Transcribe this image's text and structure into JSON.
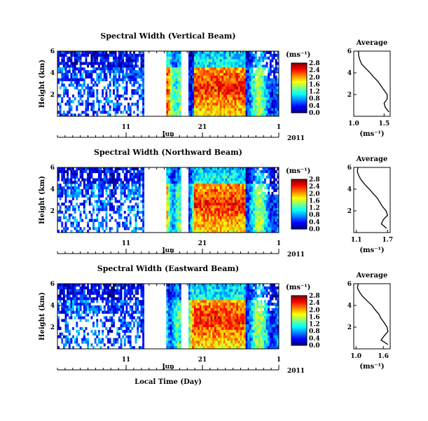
{
  "chart_data": [
    {
      "type": "heatmap",
      "title": "Spectral Width (Vertical Beam)",
      "ylabel": "Height (km)",
      "y_ticks": [
        "6",
        "4",
        "2"
      ],
      "ylim": [
        0,
        6
      ],
      "x_ticks": [
        "11",
        "21",
        "1"
      ],
      "x_month": "Jun",
      "x_year": "2011",
      "colorbar_label": "(ms⁻¹)",
      "colorbar_ticks": [
        "2.8",
        "2.4",
        "2.0",
        "1.6",
        "1.2",
        "0.8",
        "0.4",
        "0.0"
      ],
      "colorbar_range": [
        0,
        2.8
      ],
      "average": {
        "title": "Average",
        "xlabel": "(ms⁻¹)",
        "x_ticks": [
          "1.0",
          "1.5"
        ],
        "xlim": [
          1.0,
          1.6
        ],
        "y_ticks": [
          "6",
          "4",
          "2"
        ],
        "profile": [
          [
            1.08,
            6.0
          ],
          [
            1.08,
            5.6
          ],
          [
            1.1,
            5.2
          ],
          [
            1.13,
            4.8
          ],
          [
            1.2,
            4.4
          ],
          [
            1.27,
            4.0
          ],
          [
            1.33,
            3.6
          ],
          [
            1.4,
            3.2
          ],
          [
            1.45,
            2.8
          ],
          [
            1.5,
            2.4
          ],
          [
            1.55,
            2.0
          ],
          [
            1.55,
            1.6
          ],
          [
            1.5,
            1.2
          ],
          [
            1.52,
            0.8
          ],
          [
            1.58,
            0.4
          ]
        ]
      }
    },
    {
      "type": "heatmap",
      "title": "Spectral Width (Northward Beam)",
      "ylabel": "Height (km)",
      "y_ticks": [
        "6",
        "4",
        "2"
      ],
      "ylim": [
        0,
        6
      ],
      "x_ticks": [
        "11",
        "21",
        "1"
      ],
      "x_month": "Jun",
      "x_year": "2011",
      "colorbar_label": "(ms⁻¹)",
      "colorbar_ticks": [
        "2.8",
        "2.4",
        "2.0",
        "1.6",
        "1.2",
        "0.8",
        "0.4",
        "0.0"
      ],
      "colorbar_range": [
        0,
        2.8
      ],
      "average": {
        "title": "Average",
        "xlabel": "(ms⁻¹)",
        "x_ticks": [
          "1.1",
          "1.7"
        ],
        "xlim": [
          1.05,
          1.75
        ],
        "y_ticks": [
          "6",
          "4",
          "2"
        ],
        "profile": [
          [
            1.13,
            6.0
          ],
          [
            1.12,
            5.6
          ],
          [
            1.15,
            5.2
          ],
          [
            1.2,
            4.8
          ],
          [
            1.27,
            4.4
          ],
          [
            1.35,
            4.0
          ],
          [
            1.42,
            3.6
          ],
          [
            1.5,
            3.2
          ],
          [
            1.55,
            2.8
          ],
          [
            1.6,
            2.4
          ],
          [
            1.67,
            2.0
          ],
          [
            1.7,
            1.6
          ],
          [
            1.62,
            1.2
          ],
          [
            1.58,
            0.8
          ],
          [
            1.68,
            0.4
          ]
        ]
      }
    },
    {
      "type": "heatmap",
      "title": "Spectral Width (Eastward Beam)",
      "ylabel": "Height (km)",
      "y_ticks": [
        "6",
        "4",
        "2"
      ],
      "ylim": [
        0,
        6
      ],
      "x_ticks": [
        "11",
        "21",
        "1"
      ],
      "x_month": "Jun",
      "x_year": "2011",
      "colorbar_label": "(ms⁻¹)",
      "colorbar_ticks": [
        "2.8",
        "2.4",
        "2.0",
        "1.6",
        "1.2",
        "0.8",
        "0.4",
        "0.0"
      ],
      "colorbar_range": [
        0,
        2.8
      ],
      "average": {
        "title": "Average",
        "xlabel": "(ms⁻¹)",
        "x_ticks": [
          "1.0",
          "1.6"
        ],
        "xlim": [
          0.95,
          1.75
        ],
        "y_ticks": [
          "6",
          "4",
          "2"
        ],
        "profile": [
          [
            1.05,
            6.0
          ],
          [
            1.03,
            5.6
          ],
          [
            1.08,
            5.2
          ],
          [
            1.15,
            4.8
          ],
          [
            1.25,
            4.4
          ],
          [
            1.35,
            4.0
          ],
          [
            1.42,
            3.6
          ],
          [
            1.5,
            3.2
          ],
          [
            1.55,
            2.8
          ],
          [
            1.62,
            2.4
          ],
          [
            1.68,
            2.0
          ],
          [
            1.7,
            1.6
          ],
          [
            1.62,
            1.2
          ],
          [
            1.55,
            0.8
          ],
          [
            1.7,
            0.4
          ]
        ]
      }
    }
  ],
  "footer": {
    "xlabel": "Local Time (Day)"
  }
}
